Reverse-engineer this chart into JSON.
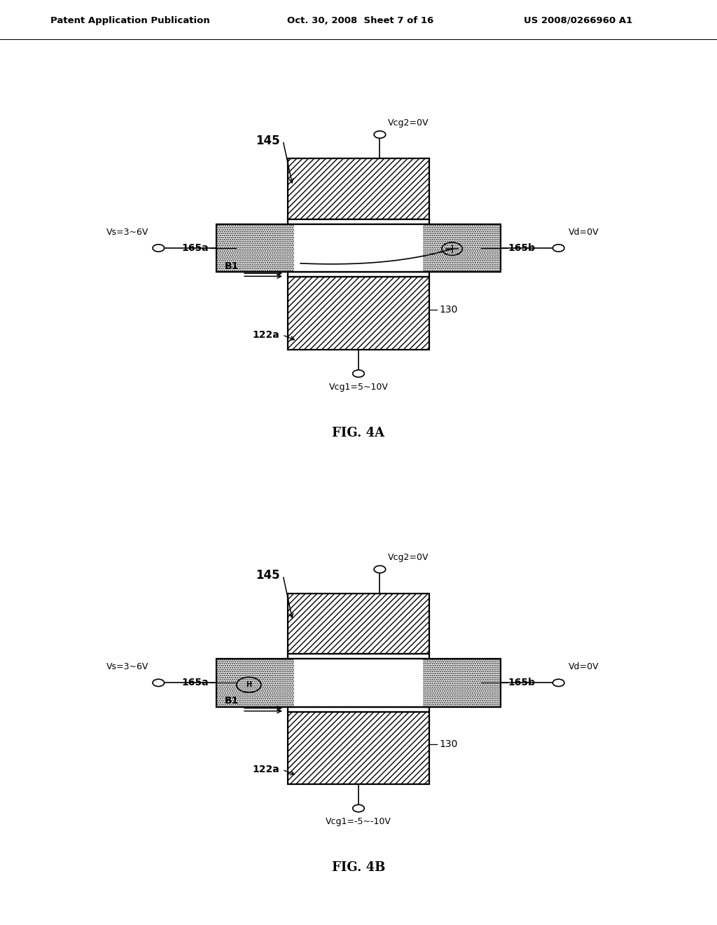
{
  "bg_color": "#ffffff",
  "header_left": "Patent Application Publication",
  "header_mid": "Oct. 30, 2008  Sheet 7 of 16",
  "header_right": "US 2008/0266960 A1",
  "fig4a_label": "FIG. 4A",
  "fig4b_label": "FIG. 4B",
  "vcg2_text": "Vcg2=0V",
  "fig4a_vcg1_text": "Vcg1=5~10V",
  "fig4b_vcg1_text": "Vcg1=-5~-10V",
  "vs_text": "Vs=3~6V",
  "vd_text": "Vd=0V",
  "label_145": "145",
  "label_165a": "165a",
  "label_165b": "165b",
  "label_130": "130",
  "label_122a": "122a",
  "label_B1": "B1"
}
